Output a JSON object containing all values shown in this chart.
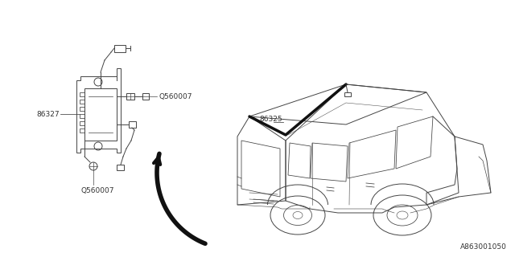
{
  "background_color": "#ffffff",
  "line_color": "#444444",
  "label_color": "#333333",
  "bold_line_color": "#111111",
  "ref_code": "A863001050",
  "fig_width": 6.4,
  "fig_height": 3.2,
  "dpi": 100,
  "label_86327": "86327",
  "label_86325": "86325",
  "label_q560007_top": "Q560007",
  "label_q560007_bot": "Q560007"
}
